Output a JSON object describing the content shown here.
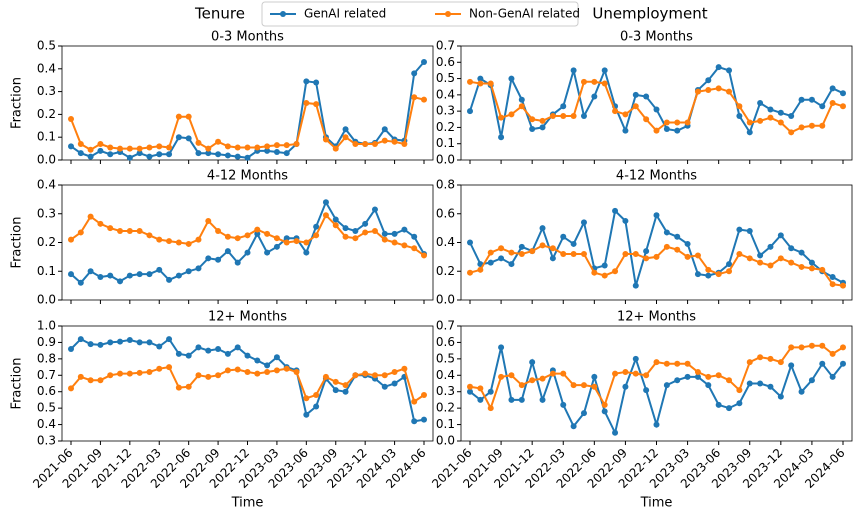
{
  "header": {
    "title_left": "Tenure",
    "title_right": "Unemployment"
  },
  "chart_data": [
    {
      "type": "line",
      "title": "0-3 Months",
      "ylabel": "Fraction",
      "ylim": [
        0,
        0.5
      ],
      "yticks": [
        {
          "value": 0,
          "label": "0.0"
        },
        0.1,
        0.2,
        0.3,
        0.4,
        0.5
      ],
      "series": [
        {
          "name": "GenAI related",
          "color": "#1f77b4",
          "values": [
            0.06,
            0.03,
            0.015,
            0.04,
            0.025,
            0.035,
            0.01,
            0.03,
            0.015,
            0.025,
            0.025,
            0.1,
            0.095,
            0.03,
            0.03,
            0.025,
            0.02,
            0.015,
            0.01,
            0.04,
            0.04,
            0.035,
            0.03,
            0.07,
            0.345,
            0.34,
            0.1,
            0.06,
            0.135,
            0.08,
            0.07,
            0.075,
            0.135,
            0.09,
            0.085,
            0.38,
            0.43
          ]
        },
        {
          "name": "Non-GenAI related",
          "color": "#ff7f0e",
          "values": [
            0.18,
            0.07,
            0.045,
            0.07,
            0.055,
            0.05,
            0.05,
            0.05,
            0.055,
            0.06,
            0.055,
            0.19,
            0.19,
            0.075,
            0.05,
            0.08,
            0.06,
            0.055,
            0.055,
            0.055,
            0.06,
            0.065,
            0.065,
            0.07,
            0.25,
            0.245,
            0.09,
            0.05,
            0.1,
            0.07,
            0.07,
            0.07,
            0.085,
            0.08,
            0.07,
            0.275,
            0.265
          ]
        }
      ]
    },
    {
      "type": "line",
      "title": "0-3 Months",
      "ylim": [
        0,
        0.7
      ],
      "yticks": [
        {
          "value": 0,
          "label": "0.0"
        },
        0.1,
        0.2,
        0.3,
        0.4,
        0.5,
        0.6,
        0.7
      ],
      "series": [
        {
          "color": "#1f77b4",
          "values": [
            0.3,
            0.5,
            0.46,
            0.14,
            0.5,
            0.37,
            0.19,
            0.2,
            0.28,
            0.33,
            0.55,
            0.27,
            0.39,
            0.55,
            0.33,
            0.18,
            0.4,
            0.39,
            0.31,
            0.19,
            0.18,
            0.21,
            0.43,
            0.49,
            0.57,
            0.55,
            0.27,
            0.17,
            0.35,
            0.31,
            0.29,
            0.27,
            0.37,
            0.37,
            0.33,
            0.44,
            0.41
          ]
        },
        {
          "color": "#ff7f0e",
          "values": [
            0.48,
            0.47,
            0.47,
            0.26,
            0.28,
            0.33,
            0.25,
            0.24,
            0.27,
            0.27,
            0.27,
            0.48,
            0.48,
            0.47,
            0.3,
            0.28,
            0.33,
            0.25,
            0.18,
            0.23,
            0.23,
            0.23,
            0.42,
            0.43,
            0.44,
            0.42,
            0.33,
            0.23,
            0.24,
            0.26,
            0.23,
            0.17,
            0.2,
            0.21,
            0.21,
            0.35,
            0.33
          ]
        }
      ]
    },
    {
      "type": "line",
      "title": "4-12 Months",
      "ylabel": "Fraction",
      "ylim": [
        0,
        0.4
      ],
      "yticks": [
        {
          "value": 0,
          "label": "0.0"
        },
        0.1,
        0.2,
        0.3,
        0.4
      ],
      "series": [
        {
          "color": "#1f77b4",
          "values": [
            0.09,
            0.06,
            0.1,
            0.08,
            0.085,
            0.065,
            0.085,
            0.09,
            0.09,
            0.105,
            0.07,
            0.085,
            0.1,
            0.11,
            0.145,
            0.14,
            0.17,
            0.13,
            0.165,
            0.23,
            0.165,
            0.185,
            0.215,
            0.215,
            0.165,
            0.255,
            0.34,
            0.28,
            0.25,
            0.24,
            0.265,
            0.315,
            0.23,
            0.23,
            0.245,
            0.22,
            0.16
          ]
        },
        {
          "color": "#ff7f0e",
          "values": [
            0.21,
            0.235,
            0.29,
            0.265,
            0.25,
            0.24,
            0.24,
            0.24,
            0.225,
            0.21,
            0.205,
            0.2,
            0.195,
            0.21,
            0.275,
            0.24,
            0.22,
            0.215,
            0.225,
            0.245,
            0.23,
            0.215,
            0.2,
            0.205,
            0.2,
            0.225,
            0.295,
            0.26,
            0.22,
            0.215,
            0.235,
            0.24,
            0.21,
            0.2,
            0.19,
            0.18,
            0.155
          ]
        }
      ]
    },
    {
      "type": "line",
      "title": "4-12 Months",
      "ylim": [
        0,
        0.8
      ],
      "yticks": [
        {
          "value": 0,
          "label": "0.0"
        },
        0.2,
        0.4,
        0.6,
        0.8
      ],
      "series": [
        {
          "color": "#1f77b4",
          "values": [
            0.4,
            0.25,
            0.26,
            0.29,
            0.25,
            0.37,
            0.34,
            0.5,
            0.29,
            0.44,
            0.39,
            0.54,
            0.22,
            0.24,
            0.62,
            0.55,
            0.1,
            0.34,
            0.59,
            0.47,
            0.44,
            0.39,
            0.18,
            0.17,
            0.19,
            0.25,
            0.49,
            0.48,
            0.31,
            0.37,
            0.45,
            0.36,
            0.33,
            0.26,
            0.2,
            0.16,
            0.12
          ]
        },
        {
          "color": "#ff7f0e",
          "values": [
            0.19,
            0.21,
            0.33,
            0.36,
            0.33,
            0.32,
            0.34,
            0.38,
            0.36,
            0.32,
            0.32,
            0.32,
            0.19,
            0.17,
            0.2,
            0.32,
            0.32,
            0.29,
            0.3,
            0.37,
            0.35,
            0.3,
            0.31,
            0.21,
            0.18,
            0.2,
            0.32,
            0.29,
            0.26,
            0.24,
            0.29,
            0.26,
            0.23,
            0.22,
            0.21,
            0.11,
            0.1
          ]
        }
      ]
    },
    {
      "type": "line",
      "title": "12+ Months",
      "ylabel": "Fraction",
      "xlabel": "Time",
      "ylim": [
        0.3,
        1.0
      ],
      "yticks": [
        0.3,
        0.4,
        0.5,
        0.6,
        0.7,
        0.8,
        0.9,
        {
          "value": 1,
          "label": "1.0"
        }
      ],
      "categories": [
        "2021-06",
        null,
        null,
        "2021-09",
        null,
        null,
        "2021-12",
        null,
        null,
        "2022-03",
        null,
        null,
        "2022-06",
        null,
        null,
        "2022-09",
        null,
        null,
        "2022-12",
        null,
        null,
        "2023-03",
        null,
        null,
        "2023-06",
        null,
        null,
        "2023-09",
        null,
        null,
        "2023-12",
        null,
        null,
        "2024-03",
        null,
        null,
        "2024-06"
      ],
      "series": [
        {
          "color": "#1f77b4",
          "values": [
            0.86,
            0.92,
            0.89,
            0.885,
            0.9,
            0.905,
            0.915,
            0.9,
            0.9,
            0.875,
            0.92,
            0.83,
            0.82,
            0.87,
            0.85,
            0.86,
            0.83,
            0.87,
            0.82,
            0.79,
            0.76,
            0.81,
            0.75,
            0.73,
            0.46,
            0.51,
            0.68,
            0.61,
            0.6,
            0.7,
            0.7,
            0.68,
            0.63,
            0.65,
            0.69,
            0.42,
            0.43
          ]
        },
        {
          "color": "#ff7f0e",
          "values": [
            0.62,
            0.69,
            0.67,
            0.67,
            0.7,
            0.71,
            0.71,
            0.715,
            0.72,
            0.74,
            0.75,
            0.625,
            0.63,
            0.7,
            0.69,
            0.7,
            0.73,
            0.735,
            0.72,
            0.71,
            0.72,
            0.73,
            0.74,
            0.72,
            0.56,
            0.58,
            0.69,
            0.66,
            0.64,
            0.7,
            0.71,
            0.7,
            0.7,
            0.72,
            0.74,
            0.54,
            0.58
          ]
        }
      ]
    },
    {
      "type": "line",
      "title": "12+ Months",
      "xlabel": "Time",
      "ylim": [
        0,
        0.7
      ],
      "yticks": [
        {
          "value": 0,
          "label": "0.0"
        },
        0.1,
        0.2,
        0.3,
        0.4,
        0.5,
        0.6,
        0.7
      ],
      "categories": [
        "2021-06",
        null,
        null,
        "2021-09",
        null,
        null,
        "2021-12",
        null,
        null,
        "2022-03",
        null,
        null,
        "2022-06",
        null,
        null,
        "2022-09",
        null,
        null,
        "2022-12",
        null,
        null,
        "2023-03",
        null,
        null,
        "2023-06",
        null,
        null,
        "2023-09",
        null,
        null,
        "2023-12",
        null,
        null,
        "2024-03",
        null,
        null,
        "2024-06"
      ],
      "series": [
        {
          "color": "#1f77b4",
          "values": [
            0.3,
            0.25,
            0.3,
            0.57,
            0.25,
            0.25,
            0.48,
            0.25,
            0.43,
            0.22,
            0.09,
            0.17,
            0.39,
            0.18,
            0.05,
            0.33,
            0.5,
            0.31,
            0.1,
            0.34,
            0.37,
            0.39,
            0.39,
            0.34,
            0.22,
            0.2,
            0.23,
            0.35,
            0.35,
            0.33,
            0.27,
            0.46,
            0.3,
            0.37,
            0.47,
            0.39,
            0.47
          ]
        },
        {
          "color": "#ff7f0e",
          "values": [
            0.33,
            0.32,
            0.2,
            0.39,
            0.4,
            0.34,
            0.37,
            0.38,
            0.41,
            0.41,
            0.34,
            0.34,
            0.33,
            0.22,
            0.41,
            0.42,
            0.41,
            0.4,
            0.48,
            0.47,
            0.47,
            0.47,
            0.42,
            0.39,
            0.4,
            0.37,
            0.31,
            0.48,
            0.51,
            0.5,
            0.48,
            0.57,
            0.57,
            0.58,
            0.58,
            0.53,
            0.57
          ]
        }
      ]
    }
  ]
}
